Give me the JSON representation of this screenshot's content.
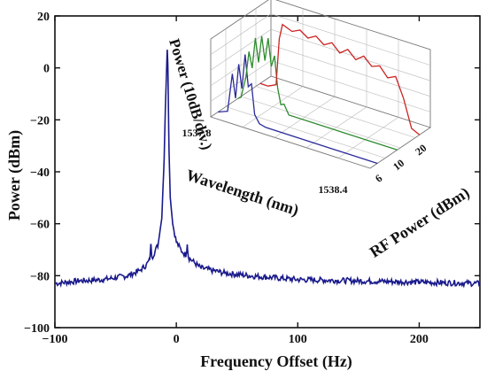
{
  "chart_data": [
    {
      "type": "line",
      "title": "",
      "xlabel": "Frequency Offset (Hz)",
      "ylabel": "Power (dBm)",
      "xlim": [
        -100,
        250
      ],
      "ylim": [
        -100,
        20
      ],
      "xticks": [
        -100,
        0,
        100,
        200
      ],
      "yticks": [
        -100,
        -80,
        -60,
        -40,
        -20,
        0,
        20
      ],
      "grid": false,
      "colors": {
        "series": "#1a1a8c",
        "axes": "#111111"
      },
      "series": [
        {
          "x": [
            -100,
            -80,
            -60,
            -40,
            -30,
            -25,
            -22,
            -21,
            -20,
            -15,
            -12,
            -10,
            -9,
            -8,
            -7.5,
            -7,
            -6.5,
            -6,
            -5,
            -3,
            0,
            5,
            8,
            9,
            10,
            15,
            20,
            40,
            60,
            100,
            150,
            200,
            250
          ],
          "y": [
            -83,
            -82,
            -81.5,
            -80,
            -78,
            -76,
            -74,
            -68,
            -73,
            -68,
            -58,
            -35,
            -15,
            0,
            7,
            2,
            -15,
            -32,
            -50,
            -60,
            -67,
            -71,
            -72,
            -68,
            -73,
            -75,
            -77,
            -79,
            -80,
            -81.5,
            -82,
            -82.5,
            -83
          ]
        }
      ]
    },
    {
      "type": "line",
      "title": "",
      "xlabel": "Wavelength (nm)",
      "ylabel": "Power (10dB/div.)",
      "zlabel": "RF Power (dBm)",
      "xticks": [
        "1537.8",
        "1538.4"
      ],
      "zticks": [
        "6",
        "10",
        "20"
      ],
      "grid": true,
      "series": [
        {
          "z": 6,
          "color": "#2a2a9a",
          "x": [
            0.0,
            0.06,
            0.09,
            0.11,
            0.13,
            0.15,
            0.17,
            0.19,
            0.21,
            0.23,
            0.26,
            0.3,
            1.0
          ],
          "y": [
            0.0,
            0.05,
            0.55,
            0.25,
            0.7,
            0.4,
            0.85,
            0.45,
            0.5,
            0.12,
            0.02,
            0.0,
            0.0
          ]
        },
        {
          "z": 10,
          "color": "#2e8b2e",
          "x": [
            0.0,
            0.02,
            0.05,
            0.07,
            0.09,
            0.11,
            0.13,
            0.15,
            0.17,
            0.19,
            0.21,
            0.23,
            0.25,
            0.27,
            0.29,
            0.32,
            1.0
          ],
          "y": [
            0.0,
            0.03,
            0.3,
            0.65,
            0.45,
            0.85,
            0.55,
            0.9,
            0.6,
            0.9,
            0.55,
            0.7,
            0.3,
            0.1,
            0.12,
            0.0,
            0.0
          ]
        },
        {
          "z": 20,
          "color": "#cc2222",
          "x": [
            0.0,
            0.05,
            0.1,
            0.12,
            0.14,
            0.2,
            0.25,
            0.3,
            0.35,
            0.4,
            0.45,
            0.5,
            0.55,
            0.6,
            0.65,
            0.7,
            0.75,
            0.8,
            0.85,
            0.9,
            0.95,
            1.0
          ],
          "y": [
            0.0,
            0.0,
            0.05,
            0.65,
            0.85,
            0.8,
            0.85,
            0.78,
            0.84,
            0.76,
            0.82,
            0.72,
            0.8,
            0.7,
            0.78,
            0.68,
            0.72,
            0.6,
            0.65,
            0.4,
            0.05,
            0.0
          ]
        }
      ]
    }
  ]
}
